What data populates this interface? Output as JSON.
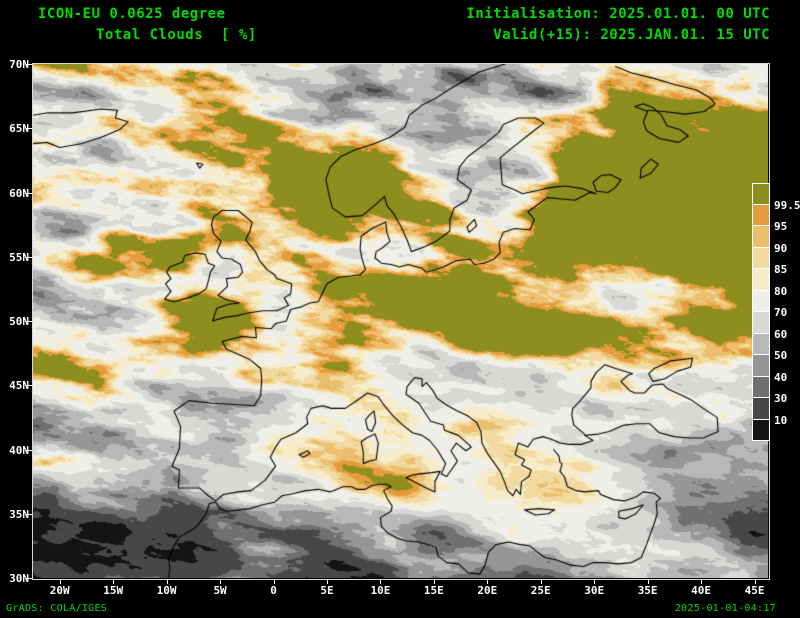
{
  "header": {
    "model_line": "ICON-EU 0.0625 degree",
    "variable_line": "Total Clouds  [ %]",
    "init_line": "Initialisation: 2025.01.01. 00 UTC",
    "valid_line": "Valid(+15): 2025.JAN.01. 15 UTC"
  },
  "map": {
    "lat_tick_labels": [
      "70N",
      "65N",
      "60N",
      "55N",
      "50N",
      "45N",
      "40N",
      "35N",
      "30N"
    ],
    "lon_tick_labels": [
      "20W",
      "15W",
      "10W",
      "5W",
      "0",
      "5E",
      "10E",
      "15E",
      "20E",
      "25E",
      "30E",
      "35E",
      "40E",
      "45E"
    ]
  },
  "legend": {
    "value_labels_top_to_bottom": [
      "99.5",
      "95",
      "90",
      "85",
      "80",
      "70",
      "60",
      "50",
      "40",
      "30",
      "10"
    ],
    "colors_top_to_bottom": [
      "#8d8e1e",
      "#e59c3c",
      "#ecbf6e",
      "#f2d9a0",
      "#f7ecca",
      "#efefe9",
      "#d8d8d4",
      "#b8b8b8",
      "#969696",
      "#707070",
      "#474747",
      "#141414"
    ]
  },
  "footer": {
    "credit": "GrADS: COLA/IGES",
    "timestamp": "2025-01-01-04:17"
  },
  "colors": {
    "background": "#000000",
    "title_text": "#00dd00",
    "axis_text": "#ffffff",
    "coastline": "#000000"
  },
  "chart_data": {
    "type": "heatmap",
    "title": "ICON-EU 0.0625 degree — Total Clouds [%]",
    "units": "%",
    "init_time": "2025.01.01. 00 UTC",
    "valid_time": "2025.JAN.01. 15 UTC",
    "forecast_hour": 15,
    "x_axis": {
      "kind": "longitude",
      "tick_labels": [
        "20W",
        "15W",
        "10W",
        "5W",
        "0",
        "5E",
        "10E",
        "15E",
        "20E",
        "25E",
        "30E",
        "35E",
        "40E",
        "45E"
      ]
    },
    "y_axis": {
      "kind": "latitude",
      "tick_labels": [
        "70N",
        "65N",
        "60N",
        "55N",
        "50N",
        "45N",
        "40N",
        "35N",
        "30N"
      ]
    },
    "color_scale": {
      "boundaries_percent": [
        10,
        30,
        40,
        50,
        60,
        70,
        80,
        85,
        90,
        95,
        99.5
      ],
      "colors_low_to_high": [
        "#141414",
        "#474747",
        "#707070",
        "#969696",
        "#b8b8b8",
        "#d8d8d4",
        "#efefe9",
        "#f7ecca",
        "#f2d9a0",
        "#ecbf6e",
        "#e59c3c",
        "#8d8e1e"
      ]
    }
  }
}
